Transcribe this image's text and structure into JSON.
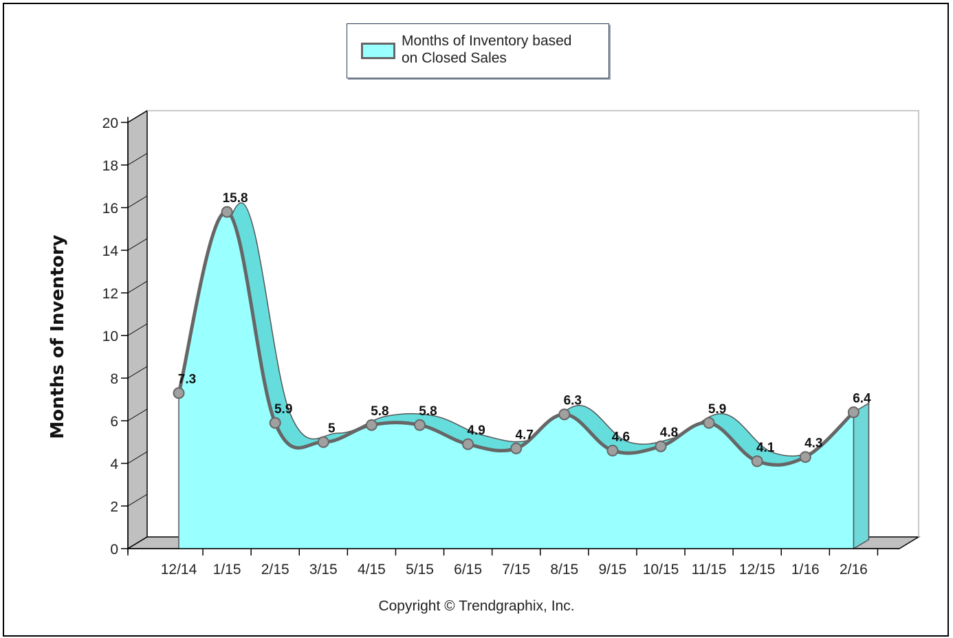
{
  "chart_data": {
    "type": "area",
    "categories": [
      "12/14",
      "1/15",
      "2/15",
      "3/15",
      "4/15",
      "5/15",
      "6/15",
      "7/15",
      "8/15",
      "9/15",
      "10/15",
      "11/15",
      "12/15",
      "1/16",
      "2/16"
    ],
    "series": [
      {
        "name": "Months of Inventory based on Closed Sales",
        "values": [
          7.3,
          15.8,
          5.9,
          5,
          5.8,
          5.8,
          4.9,
          4.7,
          6.3,
          4.6,
          4.8,
          5.9,
          4.1,
          4.3,
          6.4
        ]
      }
    ],
    "data_labels": [
      "7.3",
      "15.8",
      "5.9",
      "5",
      "5.8",
      "5.8",
      "4.9",
      "4.7",
      "6.3",
      "4.6",
      "4.8",
      "5.9",
      "4.1",
      "4.3",
      "6.4"
    ],
    "ylabel": "Months of Inventory",
    "xlabel": "",
    "ylim": [
      0,
      20
    ],
    "yticks": [
      0,
      2,
      4,
      6,
      8,
      10,
      12,
      14,
      16,
      18,
      20
    ],
    "legend_placement": "top-center",
    "grid": false,
    "three_d": true,
    "colors": {
      "fill": "#99ffff",
      "depth_fill": "#66dddd",
      "line": "#666666",
      "marker": "#a0a0a0",
      "wall": "#c0c0c0"
    }
  },
  "legend": {
    "line1": "Months of Inventory based",
    "line2": "on Closed Sales"
  },
  "copyright": "Copyright © Trendgraphix, Inc."
}
